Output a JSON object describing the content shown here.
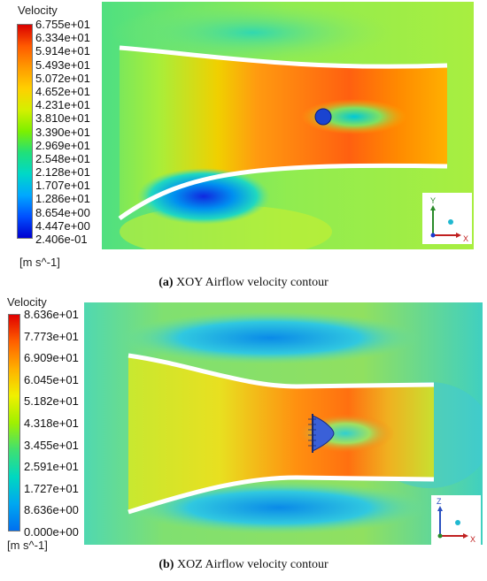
{
  "figure_a": {
    "legend_title": "Velocity",
    "ticks": [
      "6.755e+01",
      "6.334e+01",
      "5.914e+01",
      "5.493e+01",
      "5.072e+01",
      "4.652e+01",
      "4.231e+01",
      "3.810e+01",
      "3.390e+01",
      "2.969e+01",
      "2.548e+01",
      "2.128e+01",
      "1.707e+01",
      "1.286e+01",
      "8.654e+00",
      "4.447e+00",
      "2.406e-01"
    ],
    "unit": "[m s^-1]",
    "caption_label": "(a)",
    "caption_text": " XOY Airflow velocity contour",
    "axes": {
      "vertical": "Y",
      "horizontal": "X"
    },
    "colors": [
      "#d90000",
      "#ff5a00",
      "#ff9a00",
      "#ffd000",
      "#d4f000",
      "#7cf000",
      "#20e07a",
      "#00d8c8",
      "#00a8ff",
      "#0050ff",
      "#0000d0"
    ]
  },
  "figure_b": {
    "legend_title": "Velocity",
    "ticks": [
      "8.636e+01",
      "7.773e+01",
      "6.909e+01",
      "6.045e+01",
      "5.182e+01",
      "4.318e+01",
      "3.455e+01",
      "2.591e+01",
      "1.727e+01",
      "8.636e+00",
      "0.000e+00"
    ],
    "unit": "[m s^-1]",
    "caption_label": "(b)",
    "caption_text": " XOZ Airflow velocity contour",
    "axes": {
      "vertical": "Z",
      "horizontal": "X"
    },
    "colors": [
      "#e00000",
      "#ff6000",
      "#ffb000",
      "#f0f000",
      "#a0f000",
      "#40e070",
      "#00d8c0",
      "#00a8f0",
      "#0070f0"
    ]
  }
}
